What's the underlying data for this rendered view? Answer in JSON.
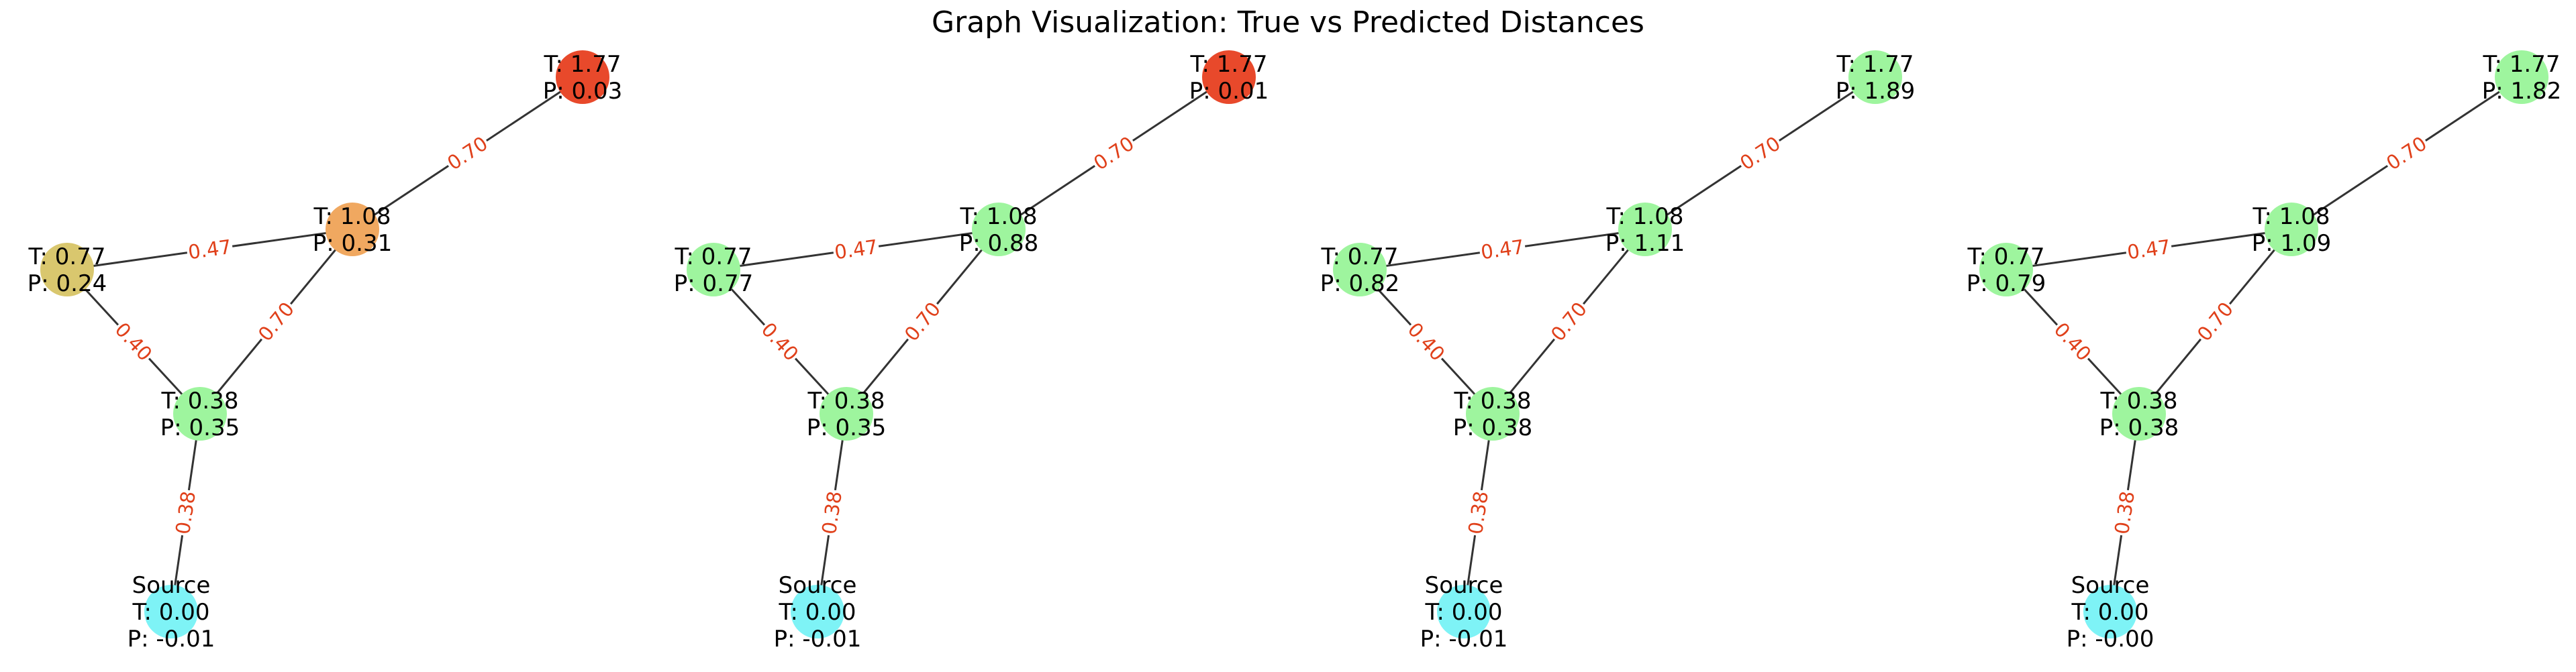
{
  "title": "Graph Visualization: True vs Predicted Distances",
  "colors": {
    "source": "#7ef3f6",
    "good": "#9ef59e",
    "mid_yellow": "#d9c76e",
    "mid_orange": "#f0a860",
    "bad": "#e8492b",
    "edge": "#333333",
    "edge_label": "#e0401a"
  },
  "edges": [
    {
      "from": "source",
      "to": "a",
      "weight": "0.38"
    },
    {
      "from": "a",
      "to": "b",
      "weight": "0.40"
    },
    {
      "from": "a",
      "to": "c",
      "weight": "0.70"
    },
    {
      "from": "b",
      "to": "c",
      "weight": "0.47"
    },
    {
      "from": "c",
      "to": "d",
      "weight": "0.70"
    }
  ],
  "panels": [
    {
      "nodes": {
        "source": {
          "lines": [
            "Source",
            "T: 0.00",
            "P: -0.01"
          ],
          "color": "#7ef3f6"
        },
        "a": {
          "lines": [
            "T: 0.38",
            "P: 0.35"
          ],
          "color": "#9ef59e"
        },
        "b": {
          "lines": [
            "T: 0.77",
            "P: 0.24"
          ],
          "color": "#d9c76e"
        },
        "c": {
          "lines": [
            "T: 1.08",
            "P: 0.31"
          ],
          "color": "#f0a860"
        },
        "d": {
          "lines": [
            "T: 1.77",
            "P: 0.03"
          ],
          "color": "#e8492b"
        }
      }
    },
    {
      "nodes": {
        "source": {
          "lines": [
            "Source",
            "T: 0.00",
            "P: -0.01"
          ],
          "color": "#7ef3f6"
        },
        "a": {
          "lines": [
            "T: 0.38",
            "P: 0.35"
          ],
          "color": "#9ef59e"
        },
        "b": {
          "lines": [
            "T: 0.77",
            "P: 0.77"
          ],
          "color": "#9ef59e"
        },
        "c": {
          "lines": [
            "T: 1.08",
            "P: 0.88"
          ],
          "color": "#9ef59e"
        },
        "d": {
          "lines": [
            "T: 1.77",
            "P: 0.01"
          ],
          "color": "#e8492b"
        }
      }
    },
    {
      "nodes": {
        "source": {
          "lines": [
            "Source",
            "T: 0.00",
            "P: -0.01"
          ],
          "color": "#7ef3f6"
        },
        "a": {
          "lines": [
            "T: 0.38",
            "P: 0.38"
          ],
          "color": "#9ef59e"
        },
        "b": {
          "lines": [
            "T: 0.77",
            "P: 0.82"
          ],
          "color": "#9ef59e"
        },
        "c": {
          "lines": [
            "T: 1.08",
            "P: 1.11"
          ],
          "color": "#9ef59e"
        },
        "d": {
          "lines": [
            "T: 1.77",
            "P: 1.89"
          ],
          "color": "#9ef59e"
        }
      }
    },
    {
      "nodes": {
        "source": {
          "lines": [
            "Source",
            "T: 0.00",
            "P: -0.00"
          ],
          "color": "#7ef3f6"
        },
        "a": {
          "lines": [
            "T: 0.38",
            "P: 0.38"
          ],
          "color": "#9ef59e"
        },
        "b": {
          "lines": [
            "T: 0.77",
            "P: 0.79"
          ],
          "color": "#9ef59e"
        },
        "c": {
          "lines": [
            "T: 1.08",
            "P: 1.09"
          ],
          "color": "#9ef59e"
        },
        "d": {
          "lines": [
            "T: 1.77",
            "P: 1.82"
          ],
          "color": "#9ef59e"
        }
      }
    }
  ]
}
